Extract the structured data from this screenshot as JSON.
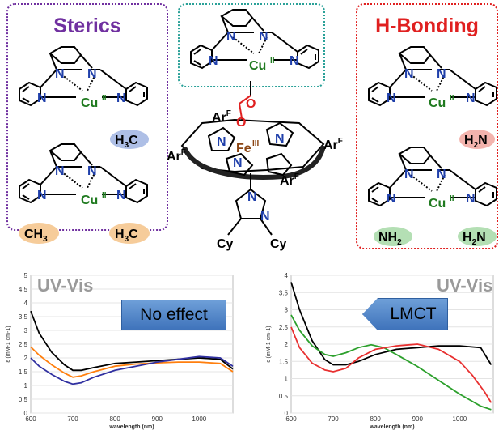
{
  "panels": {
    "sterics": {
      "title": "Sterics",
      "color": "#7030a0"
    },
    "hbond": {
      "title": "H-Bonding",
      "color": "#e02020"
    },
    "center": {
      "border_color": "#2aa198"
    }
  },
  "labels": {
    "cu": "Cu",
    "cu_ox": "II",
    "fe": "Fe",
    "fe_ox": "III",
    "n": "N",
    "o": "O",
    "arf": "ArF",
    "ar": "Ar",
    "f": "F",
    "cy": "Cy",
    "h3c_h": "H",
    "h3c_sub": "3",
    "h3c_c": "C",
    "ch3_c": "CH",
    "ch3_sub": "3",
    "h2n_h": "H",
    "h2n_sub": "2",
    "h2n_n": "N",
    "nh2_n": "NH",
    "nh2_sub": "2"
  },
  "colors": {
    "methyl_blue": "#aebfe6",
    "methyl_orange": "#f6cc9a",
    "amine_red": "#f3b3ad",
    "amine_green": "#b4dfb4",
    "cu_green": "#1f7a1f",
    "fe_brown": "#8b4513",
    "oxygen_red": "#e02020"
  },
  "chart_data": [
    {
      "type": "line",
      "title": "UV-Vis",
      "callout": "No effect",
      "xlabel": "wavelength (nm)",
      "ylabel": "ε (mM-1 cm-1)",
      "xlim": [
        600,
        1080
      ],
      "ylim": [
        0,
        5
      ],
      "xticks": [
        "600",
        "700",
        "800",
        "900",
        "1000"
      ],
      "yticks": [
        "0",
        "0.5",
        "1",
        "1.5",
        "2",
        "2.5",
        "3",
        "3.5",
        "4",
        "4.5",
        "5"
      ],
      "series": [
        {
          "color": "#000000",
          "x": [
            600,
            620,
            650,
            680,
            700,
            720,
            750,
            800,
            850,
            900,
            950,
            1000,
            1050,
            1080
          ],
          "y": [
            3.7,
            2.9,
            2.2,
            1.75,
            1.55,
            1.55,
            1.65,
            1.8,
            1.85,
            1.9,
            1.95,
            2.0,
            1.95,
            1.6
          ]
        },
        {
          "color": "#ff7f0e",
          "x": [
            600,
            620,
            650,
            680,
            700,
            720,
            750,
            800,
            850,
            900,
            950,
            1000,
            1050,
            1080
          ],
          "y": [
            2.4,
            2.1,
            1.75,
            1.45,
            1.3,
            1.35,
            1.5,
            1.7,
            1.78,
            1.82,
            1.85,
            1.85,
            1.8,
            1.5
          ]
        },
        {
          "color": "#3030a0",
          "x": [
            600,
            620,
            650,
            680,
            700,
            720,
            750,
            800,
            850,
            900,
            950,
            1000,
            1050,
            1080
          ],
          "y": [
            2.0,
            1.7,
            1.4,
            1.15,
            1.05,
            1.1,
            1.3,
            1.55,
            1.7,
            1.85,
            1.95,
            2.05,
            2.0,
            1.7
          ]
        }
      ]
    },
    {
      "type": "line",
      "title": "UV-Vis",
      "callout": "LMCT",
      "xlabel": "wavelength (nm)",
      "ylabel": "ε (mM-1 cm-1)",
      "xlim": [
        600,
        1080
      ],
      "ylim": [
        0,
        4
      ],
      "xticks": [
        "600",
        "700",
        "800",
        "900",
        "1000"
      ],
      "yticks": [
        "0",
        "0.5",
        "1",
        "1.5",
        "2",
        "2.5",
        "3",
        "3.5",
        "4"
      ],
      "series": [
        {
          "color": "#000000",
          "x": [
            600,
            620,
            650,
            680,
            700,
            730,
            760,
            800,
            850,
            900,
            950,
            1000,
            1050,
            1075
          ],
          "y": [
            3.8,
            3.0,
            2.1,
            1.55,
            1.4,
            1.4,
            1.5,
            1.7,
            1.85,
            1.9,
            1.95,
            1.95,
            1.9,
            1.4
          ]
        },
        {
          "color": "#2ca02c",
          "x": [
            600,
            620,
            650,
            680,
            700,
            730,
            760,
            790,
            820,
            850,
            900,
            950,
            1000,
            1050,
            1075
          ],
          "y": [
            2.85,
            2.4,
            1.95,
            1.7,
            1.65,
            1.75,
            1.9,
            1.98,
            1.9,
            1.7,
            1.35,
            0.95,
            0.55,
            0.2,
            0.1
          ]
        },
        {
          "color": "#e83030",
          "x": [
            600,
            620,
            650,
            680,
            700,
            730,
            760,
            800,
            850,
            900,
            950,
            1000,
            1030,
            1060,
            1075
          ],
          "y": [
            2.5,
            1.9,
            1.45,
            1.25,
            1.2,
            1.3,
            1.6,
            1.85,
            1.95,
            2.0,
            1.85,
            1.5,
            1.1,
            0.6,
            0.3
          ]
        }
      ]
    }
  ]
}
